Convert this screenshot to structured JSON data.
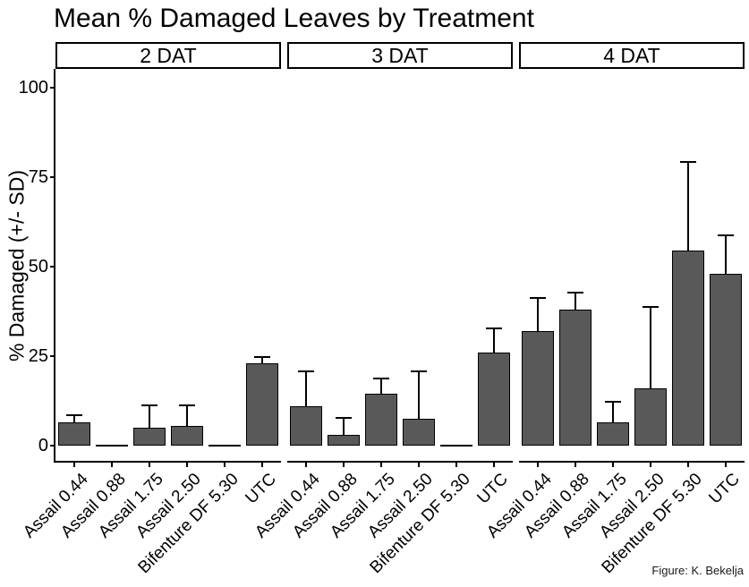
{
  "caption": "Figure: K. Bekelja",
  "chart_data": {
    "type": "bar",
    "title": "Mean % Damaged Leaves by Treatment",
    "xlabel": "",
    "ylabel": "% Damaged (+/- SD)",
    "ylim": [
      0,
      100
    ],
    "yticks": [
      0,
      25,
      50,
      75,
      100
    ],
    "grid": false,
    "legend_position": "none",
    "bar_fill": "#595959",
    "bar_outline": "#000000",
    "error_bar_style": "upper whisker with cap (+SD)",
    "categories": [
      "Assail 0.44",
      "Assail 0.88",
      "Assail 1.75",
      "Assail 2.50",
      "Bifenture DF 5.30",
      "UTC"
    ],
    "facets": [
      {
        "label": "2 DAT",
        "means": [
          6.5,
          0,
          5,
          5.5,
          0,
          23
        ],
        "sd": [
          2.3,
          0,
          6.5,
          6,
          0,
          2
        ]
      },
      {
        "label": "3 DAT",
        "means": [
          11,
          3,
          14.5,
          7.5,
          0,
          26
        ],
        "sd": [
          10,
          5,
          4.5,
          13.5,
          0,
          7
        ]
      },
      {
        "label": "4 DAT",
        "means": [
          32,
          38,
          6.5,
          16,
          54.5,
          48
        ],
        "sd": [
          9.5,
          5,
          6,
          23,
          25,
          11
        ]
      }
    ]
  }
}
